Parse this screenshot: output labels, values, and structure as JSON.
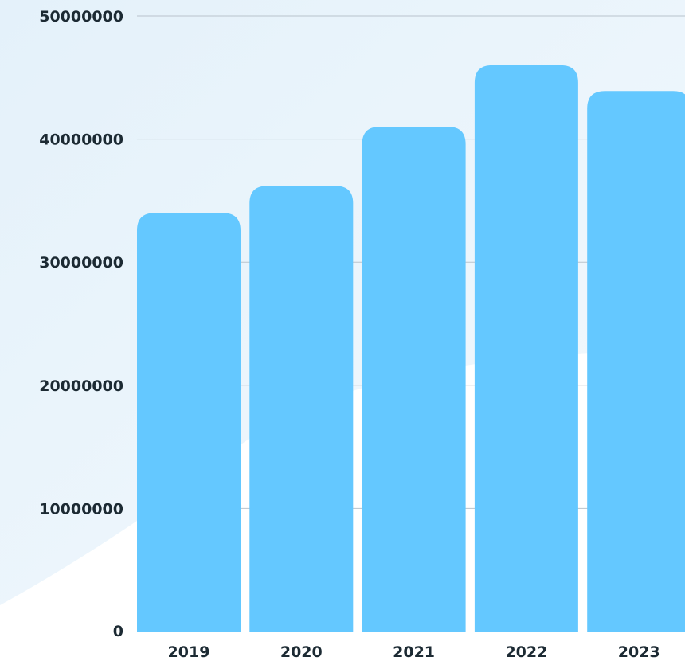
{
  "colors": {
    "bar": "#64c8ff",
    "grid": "#b9c3cc",
    "text": "#1c2a33",
    "background_tint": "#e9f4fb"
  },
  "chart_data": {
    "type": "bar",
    "title": "",
    "xlabel": "",
    "ylabel": "",
    "categories": [
      "2019",
      "2020",
      "2021",
      "2022",
      "2023"
    ],
    "series": [
      {
        "values": [
          34000000,
          36200000,
          41000000,
          46000000,
          43900000
        ]
      }
    ],
    "ylim": [
      0,
      50000000
    ],
    "yticks": [
      "0",
      "10000000",
      "20000000",
      "30000000",
      "40000000",
      "50000000"
    ],
    "grid": true,
    "legend": "none"
  }
}
